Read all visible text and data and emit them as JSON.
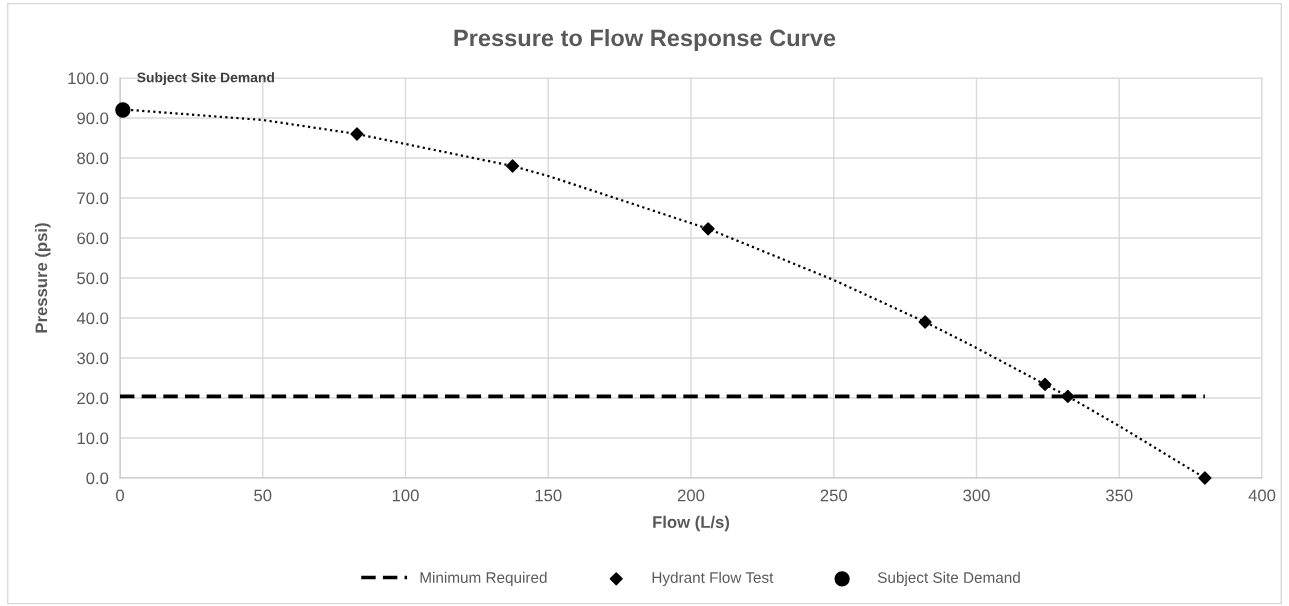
{
  "chart_data": {
    "type": "scatter",
    "title": "Pressure to Flow Response Curve",
    "xlabel": "Flow (L/s)",
    "ylabel": "Pressure (psi)",
    "xlim": [
      0,
      400
    ],
    "xticks": [
      0,
      50,
      100,
      150,
      200,
      250,
      300,
      350,
      400
    ],
    "ylim": [
      0,
      100
    ],
    "yticks": [
      {
        "value": 0,
        "label": "0.0"
      },
      {
        "value": 10,
        "label": "10.0"
      },
      {
        "value": 20,
        "label": "20.0"
      },
      {
        "value": 30,
        "label": "30.0"
      },
      {
        "value": 40,
        "label": "40.0"
      },
      {
        "value": 50,
        "label": "50.0"
      },
      {
        "value": 60,
        "label": "60.0"
      },
      {
        "value": 70,
        "label": "70.0"
      },
      {
        "value": 80,
        "label": "80.0"
      },
      {
        "value": 90,
        "label": "90.0"
      },
      {
        "value": 100,
        "label": "100.0"
      }
    ],
    "grid": true,
    "legend": "bottom",
    "series": [
      {
        "type": "line",
        "color": "#000000",
        "line_style": "dotted",
        "marker": "none",
        "x": [
          0,
          50,
          83,
          100,
          137.5,
          150,
          206,
          250,
          282,
          300,
          324,
          332,
          350,
          380
        ],
        "values": [
          92.2,
          89.5,
          86,
          83.5,
          78,
          75.5,
          62.3,
          49.5,
          39,
          32.5,
          23.4,
          20.4,
          13,
          0
        ]
      },
      {
        "type": "line",
        "name": "Minimum Required",
        "color": "#000000",
        "line_style": "dashed",
        "marker": "none",
        "x": [
          0,
          380
        ],
        "values": [
          20.4,
          20.4
        ]
      },
      {
        "name": "Hydrant Flow Test",
        "color": "#000000",
        "marker": "diamond",
        "x": [
          83,
          137.5,
          206,
          282,
          324,
          332,
          380
        ],
        "values": [
          86,
          78,
          62.3,
          39,
          23.4,
          20.4,
          0
        ]
      },
      {
        "name": "Subject Site Demand",
        "color": "#000000",
        "marker": "circle",
        "x": [
          1
        ],
        "values": [
          92
        ]
      }
    ],
    "annotations": [
      {
        "text": "Subject Site Demand",
        "x": 1,
        "y": 92
      }
    ]
  }
}
